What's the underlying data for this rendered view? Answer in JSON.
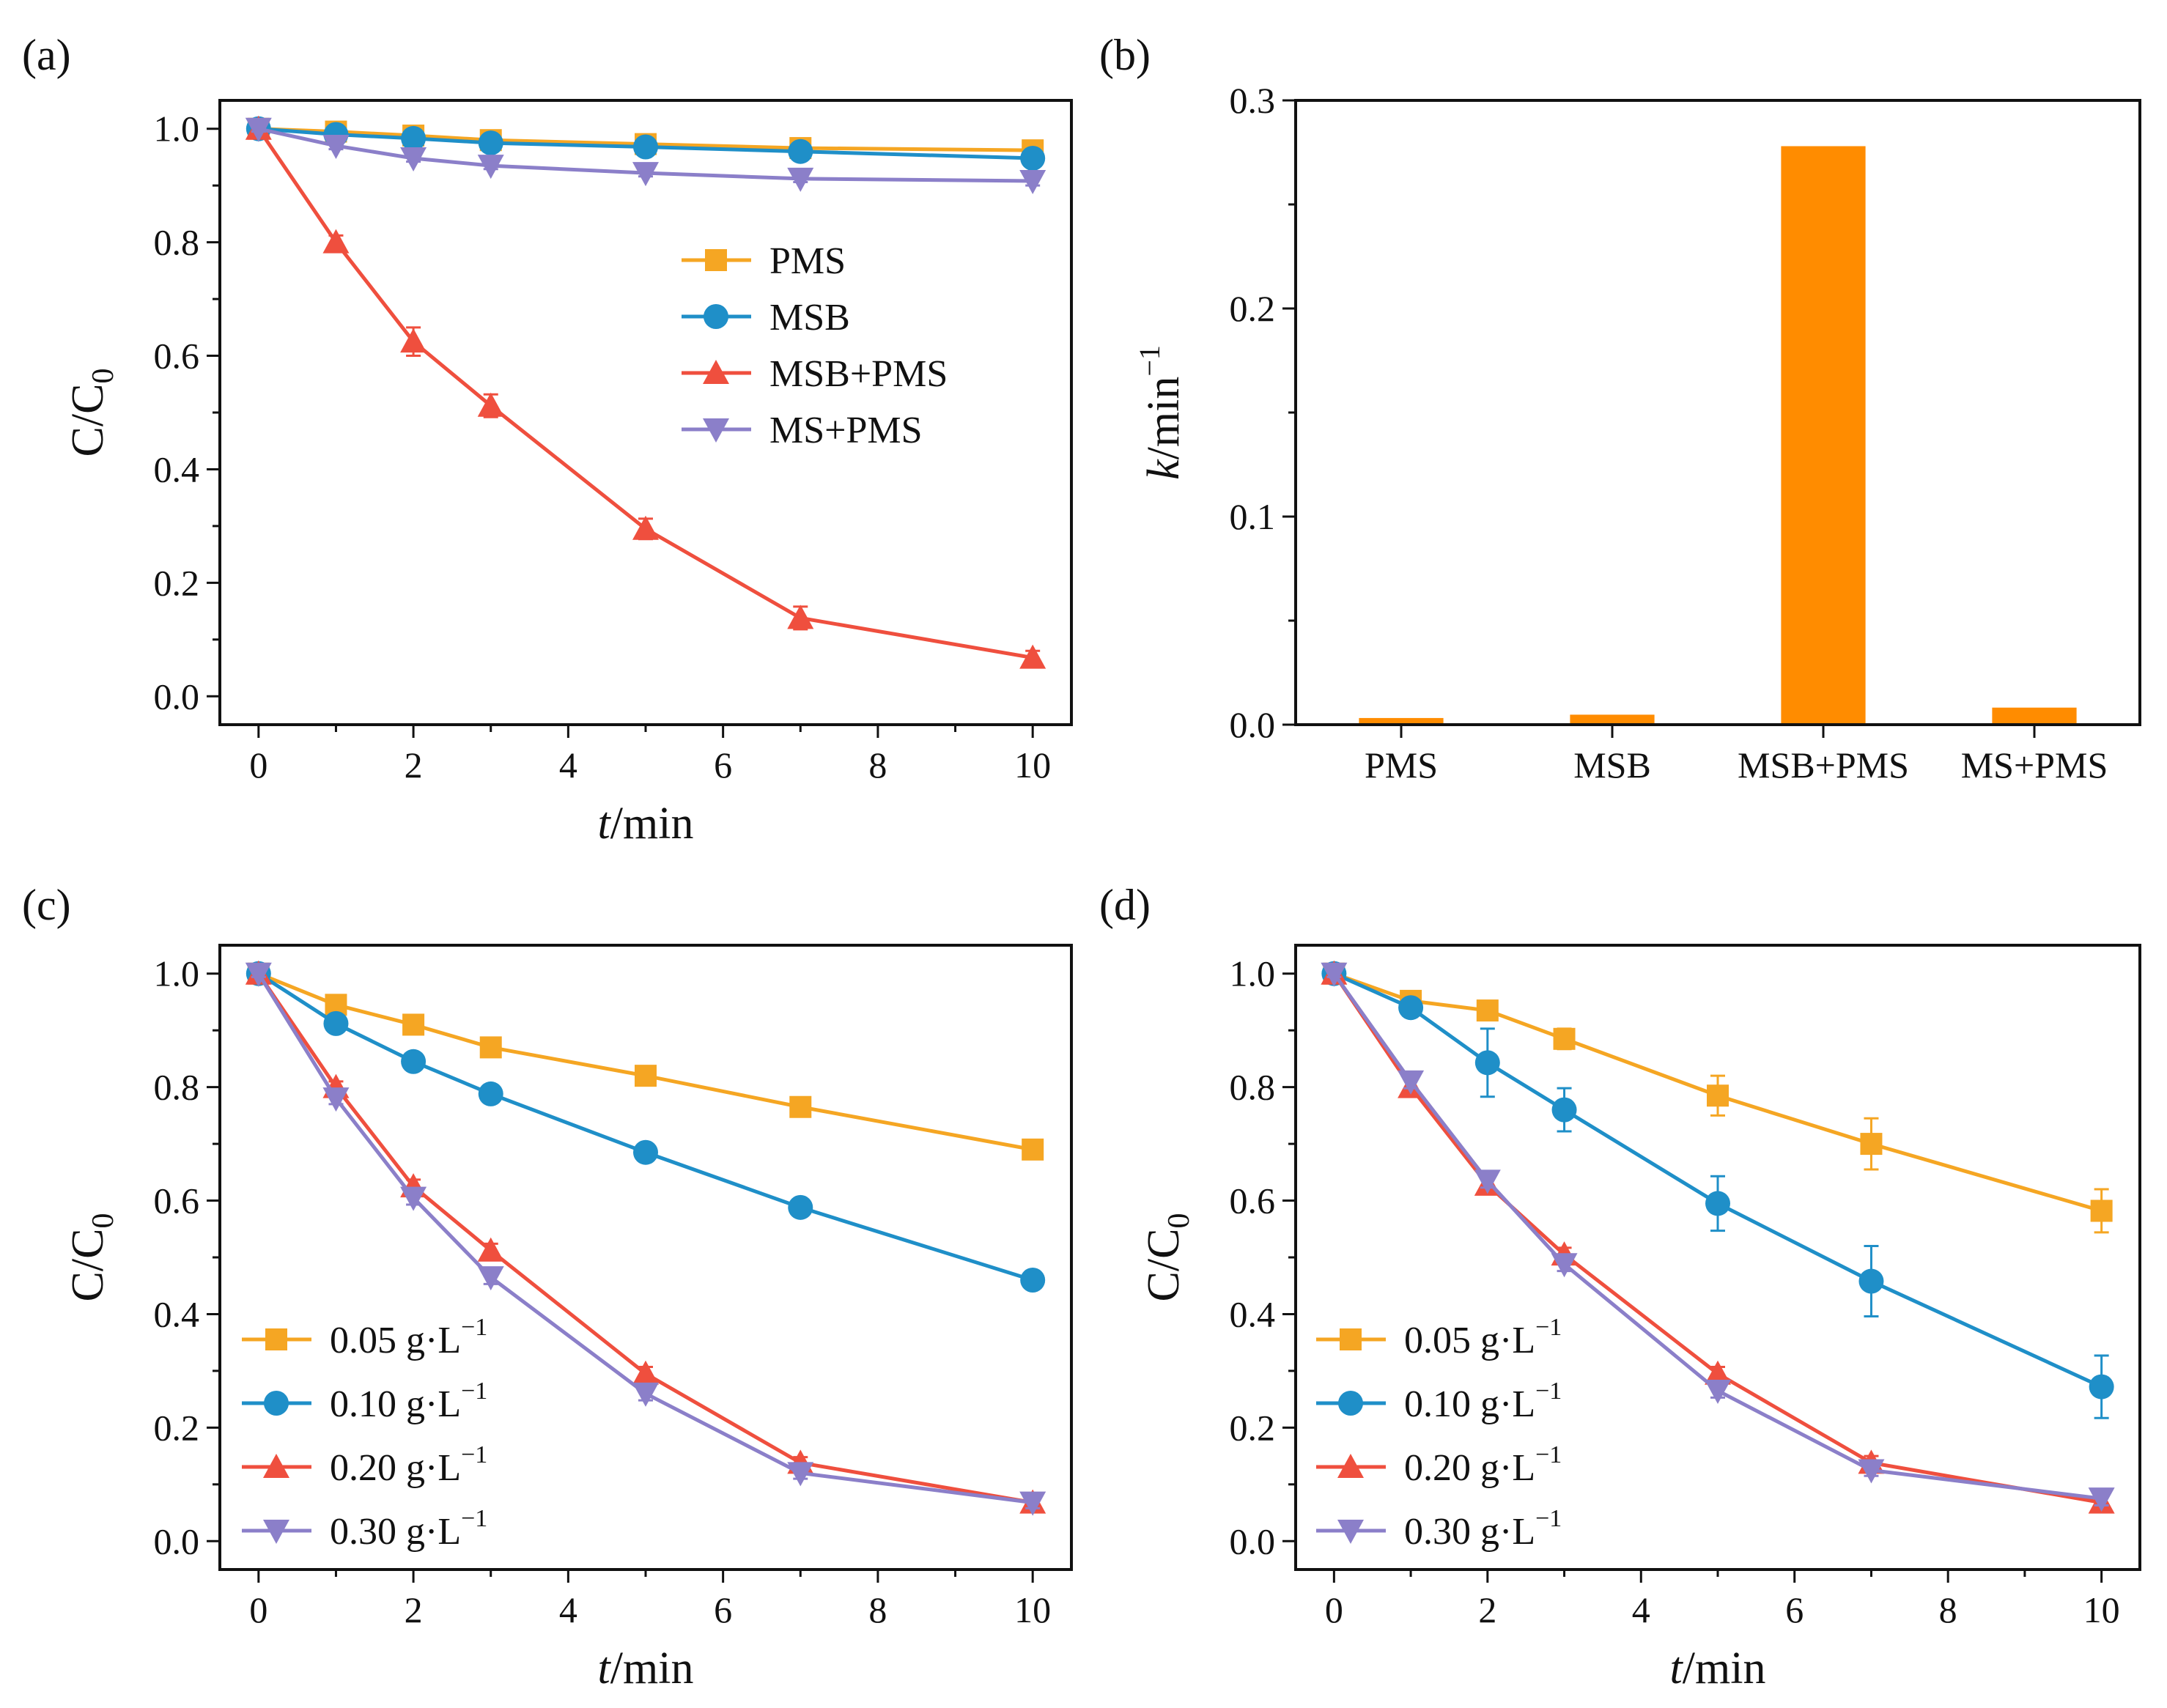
{
  "chart_data": [
    {
      "panel_label": "(a)",
      "type": "line",
      "xlabel_italic": "t",
      "xlabel_rest": "/min",
      "ylabel_main": "C/C",
      "ylabel_sub": "0",
      "xlim": [
        -0.5,
        10.5
      ],
      "ylim": [
        -0.05,
        1.05
      ],
      "xticks": [
        "0",
        "2",
        "4",
        "6",
        "8",
        "10"
      ],
      "yticks": [
        "0.0",
        "0.2",
        "0.4",
        "0.6",
        "0.8",
        "1.0"
      ],
      "grid": false,
      "legend_position": "center-right",
      "x": [
        0,
        1,
        2,
        3,
        5,
        7,
        10
      ],
      "series": [
        {
          "name": "PMS",
          "marker": "square",
          "color": "#F5A623",
          "values": [
            1.0,
            0.995,
            0.988,
            0.98,
            0.973,
            0.966,
            0.962
          ],
          "errors": [
            0.005,
            0.006,
            0.006,
            0.006,
            0.006,
            0.006,
            0.008
          ]
        },
        {
          "name": "MSB",
          "marker": "circle",
          "color": "#1F8FC8",
          "values": [
            1.0,
            0.99,
            0.983,
            0.975,
            0.968,
            0.96,
            0.948
          ],
          "errors": [
            0.005,
            0.006,
            0.006,
            0.007,
            0.007,
            0.008,
            0.01
          ]
        },
        {
          "name": "MSB+PMS",
          "marker": "triangle-up",
          "color": "#EF4F3E",
          "values": [
            1.0,
            0.8,
            0.625,
            0.512,
            0.295,
            0.138,
            0.068
          ],
          "errors": [
            0.006,
            0.012,
            0.025,
            0.02,
            0.018,
            0.02,
            0.012
          ]
        },
        {
          "name": "MS+PMS",
          "marker": "triangle-down",
          "color": "#8B7FC9",
          "values": [
            1.0,
            0.97,
            0.948,
            0.935,
            0.922,
            0.912,
            0.908
          ],
          "errors": [
            0.005,
            0.006,
            0.006,
            0.006,
            0.006,
            0.006,
            0.008
          ]
        }
      ]
    },
    {
      "panel_label": "(b)",
      "type": "bar",
      "ylabel_italic": "k",
      "ylabel_rest": "/min",
      "ylabel_sup": "−1",
      "categories": [
        "PMS",
        "MSB",
        "MSB+PMS",
        "MS+PMS"
      ],
      "values": [
        0.0032,
        0.0048,
        0.278,
        0.0082
      ],
      "ylim": [
        0,
        0.3
      ],
      "yticks": [
        "0.0",
        "0.1",
        "0.2",
        "0.3"
      ],
      "bar_color": "#FF8C00",
      "grid": false
    },
    {
      "panel_label": "(c)",
      "type": "line",
      "xlabel_italic": "t",
      "xlabel_rest": "/min",
      "ylabel_main": "C/C",
      "ylabel_sub": "0",
      "xlim": [
        -0.5,
        10.5
      ],
      "ylim": [
        -0.05,
        1.05
      ],
      "xticks": [
        "0",
        "2",
        "4",
        "6",
        "8",
        "10"
      ],
      "yticks": [
        "0.0",
        "0.2",
        "0.4",
        "0.6",
        "0.8",
        "1.0"
      ],
      "grid": false,
      "legend_position": "bottom-left",
      "x": [
        0,
        1,
        2,
        3,
        5,
        7,
        10
      ],
      "series": [
        {
          "name": "0.05 g·L",
          "sup": "−1",
          "marker": "square",
          "color": "#F5A623",
          "values": [
            1.0,
            0.945,
            0.91,
            0.87,
            0.82,
            0.765,
            0.69
          ],
          "errors": [
            0.005,
            0.008,
            0.008,
            0.008,
            0.008,
            0.008,
            0.01
          ]
        },
        {
          "name": "0.10 g·L",
          "sup": "−1",
          "marker": "circle",
          "color": "#1F8FC8",
          "values": [
            1.0,
            0.912,
            0.845,
            0.788,
            0.685,
            0.588,
            0.46
          ],
          "errors": [
            0.005,
            0.008,
            0.01,
            0.012,
            0.014,
            0.012,
            0.014
          ]
        },
        {
          "name": "0.20 g·L",
          "sup": "−1",
          "marker": "triangle-up",
          "color": "#EF4F3E",
          "values": [
            1.0,
            0.8,
            0.625,
            0.512,
            0.295,
            0.138,
            0.068
          ],
          "errors": [
            0.006,
            0.01,
            0.012,
            0.012,
            0.012,
            0.01,
            0.01
          ]
        },
        {
          "name": "0.30 g·L",
          "sup": "−1",
          "marker": "triangle-down",
          "color": "#8B7FC9",
          "values": [
            1.0,
            0.78,
            0.605,
            0.465,
            0.26,
            0.12,
            0.068
          ],
          "errors": [
            0.006,
            0.01,
            0.012,
            0.012,
            0.012,
            0.01,
            0.01
          ]
        }
      ]
    },
    {
      "panel_label": "(d)",
      "type": "line",
      "xlabel_italic": "t",
      "xlabel_rest": "/min",
      "ylabel_main": "C/C",
      "ylabel_sub": "0",
      "xlim": [
        -0.5,
        10.5
      ],
      "ylim": [
        -0.05,
        1.05
      ],
      "xticks": [
        "0",
        "2",
        "4",
        "6",
        "8",
        "10"
      ],
      "yticks": [
        "0.0",
        "0.2",
        "0.4",
        "0.6",
        "0.8",
        "1.0"
      ],
      "grid": false,
      "legend_position": "bottom-left",
      "x": [
        0,
        1,
        2,
        3,
        5,
        7,
        10
      ],
      "series": [
        {
          "name": "0.05 g·L",
          "sup": "−1",
          "marker": "square",
          "color": "#F5A623",
          "values": [
            1.0,
            0.952,
            0.935,
            0.885,
            0.785,
            0.7,
            0.582
          ],
          "errors": [
            0.005,
            0.01,
            0.012,
            0.018,
            0.035,
            0.045,
            0.038
          ]
        },
        {
          "name": "0.10 g·L",
          "sup": "−1",
          "marker": "circle",
          "color": "#1F8FC8",
          "values": [
            1.0,
            0.94,
            0.843,
            0.76,
            0.595,
            0.458,
            0.272
          ],
          "errors": [
            0.005,
            0.012,
            0.06,
            0.038,
            0.048,
            0.062,
            0.055
          ]
        },
        {
          "name": "0.20 g·L",
          "sup": "−1",
          "marker": "triangle-up",
          "color": "#EF4F3E",
          "values": [
            1.0,
            0.8,
            0.628,
            0.505,
            0.295,
            0.138,
            0.068
          ],
          "errors": [
            0.006,
            0.015,
            0.015,
            0.012,
            0.012,
            0.012,
            0.015
          ]
        },
        {
          "name": "0.30 g·L",
          "sup": "−1",
          "marker": "triangle-down",
          "color": "#8B7FC9",
          "values": [
            1.0,
            0.81,
            0.635,
            0.488,
            0.265,
            0.125,
            0.075
          ],
          "errors": [
            0.006,
            0.012,
            0.012,
            0.012,
            0.012,
            0.01,
            0.012
          ]
        }
      ]
    }
  ]
}
